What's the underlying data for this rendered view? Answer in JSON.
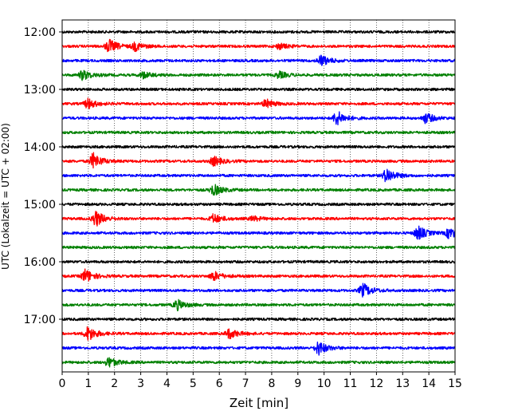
{
  "chart_data": {
    "type": "seismogram",
    "xlabel": "Zeit  [min]",
    "ylabel": "UTC (Lokalzeit = UTC + 02:00)",
    "xlim": [
      0,
      15
    ],
    "x_ticks": [
      0,
      1,
      2,
      3,
      4,
      5,
      6,
      7,
      8,
      9,
      10,
      11,
      12,
      13,
      14,
      15
    ],
    "x_tick_labels": [
      "0",
      "1",
      "2",
      "3",
      "4",
      "5",
      "6",
      "7",
      "8",
      "9",
      "10",
      "11",
      "12",
      "13",
      "14",
      "15"
    ],
    "y_tick_labels": [
      "12:00",
      "13:00",
      "14:00",
      "15:00",
      "16:00",
      "17:00"
    ],
    "grid": "vertical dotted lines at each minute",
    "trace_colors": [
      "#000000",
      "#ff0000",
      "#0000ff",
      "#008000"
    ],
    "traces": [
      {
        "start": "12:00",
        "color": "#000000",
        "events": []
      },
      {
        "start": "12:15",
        "color": "#ff0000",
        "events": [
          {
            "t": 1.8,
            "amp": 0.75
          },
          {
            "t": 2.8,
            "amp": 0.45
          },
          {
            "t": 8.3,
            "amp": 0.3
          }
        ]
      },
      {
        "start": "12:30",
        "color": "#0000ff",
        "events": [
          {
            "t": 9.9,
            "amp": 0.6
          }
        ]
      },
      {
        "start": "12:45",
        "color": "#008000",
        "events": [
          {
            "t": 0.8,
            "amp": 0.55
          },
          {
            "t": 3.1,
            "amp": 0.35
          },
          {
            "t": 8.3,
            "amp": 0.35
          }
        ]
      },
      {
        "start": "13:00",
        "color": "#000000",
        "events": []
      },
      {
        "start": "13:15",
        "color": "#ff0000",
        "events": [
          {
            "t": 1.0,
            "amp": 0.55
          },
          {
            "t": 7.8,
            "amp": 0.45
          }
        ]
      },
      {
        "start": "13:30",
        "color": "#0000ff",
        "events": [
          {
            "t": 10.5,
            "amp": 0.8
          },
          {
            "t": 13.9,
            "amp": 0.55
          }
        ]
      },
      {
        "start": "13:45",
        "color": "#008000",
        "events": []
      },
      {
        "start": "14:00",
        "color": "#000000",
        "events": []
      },
      {
        "start": "14:15",
        "color": "#ff0000",
        "events": [
          {
            "t": 1.2,
            "amp": 0.85
          },
          {
            "t": 5.8,
            "amp": 0.5
          }
        ]
      },
      {
        "start": "14:30",
        "color": "#0000ff",
        "events": [
          {
            "t": 12.4,
            "amp": 0.8
          }
        ]
      },
      {
        "start": "14:45",
        "color": "#008000",
        "events": [
          {
            "t": 5.8,
            "amp": 0.6
          }
        ]
      },
      {
        "start": "15:00",
        "color": "#000000",
        "events": []
      },
      {
        "start": "15:15",
        "color": "#ff0000",
        "events": [
          {
            "t": 1.3,
            "amp": 0.85
          },
          {
            "t": 5.8,
            "amp": 0.5
          },
          {
            "t": 7.3,
            "amp": 0.25
          }
        ]
      },
      {
        "start": "15:30",
        "color": "#0000ff",
        "events": [
          {
            "t": 13.6,
            "amp": 0.75
          },
          {
            "t": 14.8,
            "amp": 0.6
          }
        ]
      },
      {
        "start": "15:45",
        "color": "#008000",
        "events": []
      },
      {
        "start": "16:00",
        "color": "#000000",
        "events": []
      },
      {
        "start": "16:15",
        "color": "#ff0000",
        "events": [
          {
            "t": 0.9,
            "amp": 0.75
          },
          {
            "t": 5.8,
            "amp": 0.5
          }
        ]
      },
      {
        "start": "16:30",
        "color": "#0000ff",
        "events": [
          {
            "t": 11.5,
            "amp": 0.75
          }
        ]
      },
      {
        "start": "16:45",
        "color": "#008000",
        "events": [
          {
            "t": 4.4,
            "amp": 0.55
          }
        ]
      },
      {
        "start": "17:00",
        "color": "#000000",
        "events": []
      },
      {
        "start": "17:15",
        "color": "#ff0000",
        "events": [
          {
            "t": 1.0,
            "amp": 0.8
          },
          {
            "t": 6.4,
            "amp": 0.55
          }
        ]
      },
      {
        "start": "17:30",
        "color": "#0000ff",
        "events": [
          {
            "t": 9.8,
            "amp": 0.75
          }
        ]
      },
      {
        "start": "17:45",
        "color": "#008000",
        "events": [
          {
            "t": 1.8,
            "amp": 0.55
          }
        ]
      }
    ]
  }
}
